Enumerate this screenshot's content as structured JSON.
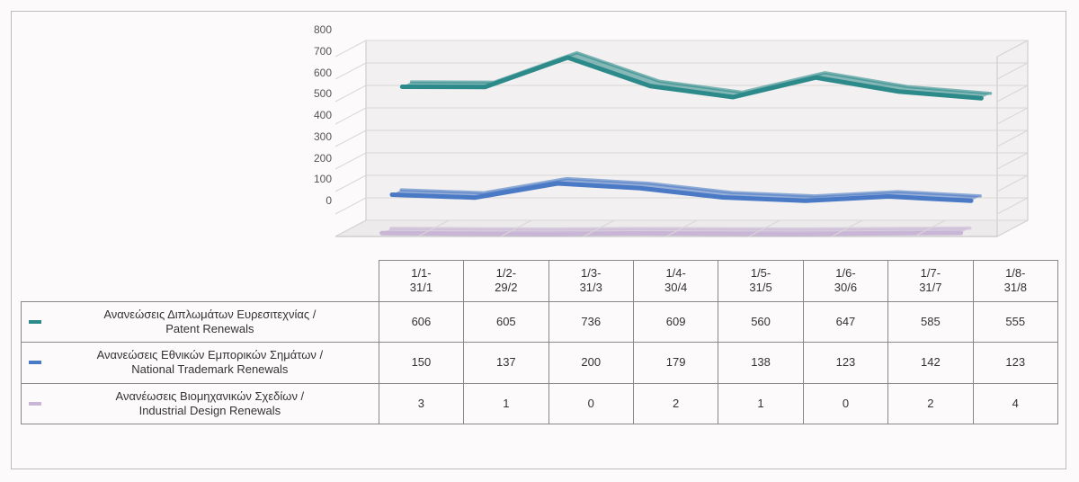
{
  "chart": {
    "type": "line-3d",
    "categories": [
      "1/1-31/1",
      "1/2-29/2",
      "1/3-31/3",
      "1/4-30/4",
      "1/5-31/5",
      "1/6-30/6",
      "1/7-31/7",
      "1/8-31/8"
    ],
    "ylim": [
      0,
      800
    ],
    "ytick_step": 100,
    "grid_color": "#d9d6d6",
    "floor_color": "#eceaea",
    "wall_tint": "#f2f0f0",
    "background_color": "#fcfafa",
    "axis_fontsize": 12,
    "line_width": 5,
    "depth_dx": 34,
    "depth_dy": 18,
    "series": [
      {
        "key": "patent",
        "label": "Ανανεώσεις Διπλωμάτων Ευρεσιτεχνίας  / Patent Renewals",
        "color": "#2d8a8a",
        "values": [
          606,
          605,
          736,
          609,
          560,
          647,
          585,
          555
        ]
      },
      {
        "key": "trademark",
        "label": "Ανανεώσεις Εθνικών Εμπορικών Σημάτων / National Trademark Renewals",
        "color": "#4a79c5",
        "values": [
          150,
          137,
          200,
          179,
          138,
          123,
          142,
          123
        ]
      },
      {
        "key": "design",
        "label": "Ανανέωσεις Βιομηχανικών Σχεδίων / Industrial Design Renewals",
        "color": "#c9b6d6",
        "values": [
          3,
          1,
          0,
          2,
          1,
          0,
          2,
          4
        ]
      }
    ]
  }
}
